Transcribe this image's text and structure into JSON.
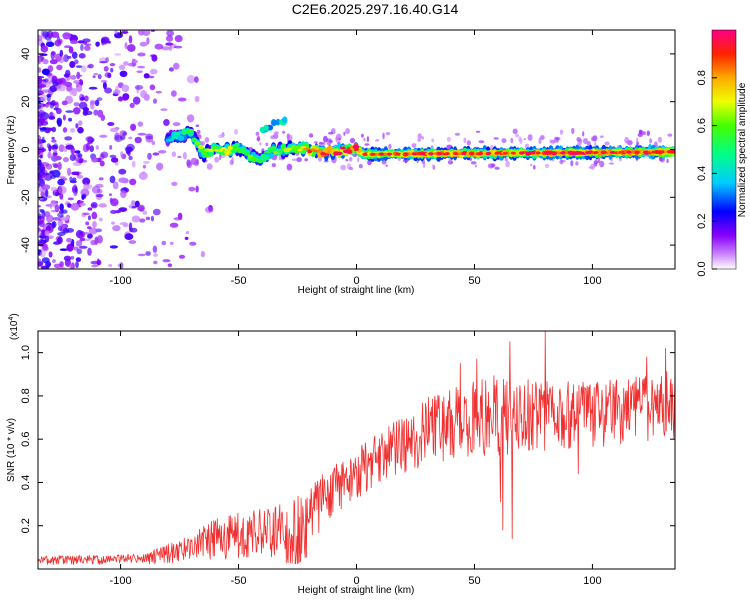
{
  "title": "C2E6.2025.297.16.40.G14",
  "chart_data": [
    {
      "type": "heatmap",
      "xlabel": "Height of straight line (km)",
      "ylabel": "Frequency (Hz)",
      "xlim": [
        -135,
        135
      ],
      "ylim": [
        -50,
        50
      ],
      "xticks": [
        -100,
        -50,
        0,
        50,
        100
      ],
      "yticks": [
        -40,
        -20,
        0,
        20,
        40
      ],
      "colorbar": {
        "label": "Normalized spectral amplitude",
        "range": [
          0,
          1
        ],
        "ticks": [
          0.0,
          0.2,
          0.4,
          0.6,
          0.8
        ],
        "tick_labels": [
          "0.0",
          "0.2",
          "0.4",
          "0.6",
          "0.8"
        ]
      },
      "ridge": [
        {
          "x": -78,
          "y": 5,
          "amp": 0.4
        },
        {
          "x": -70,
          "y": 7,
          "amp": 0.55
        },
        {
          "x": -65,
          "y": -2,
          "amp": 0.6
        },
        {
          "x": -60,
          "y": 0,
          "amp": 0.65
        },
        {
          "x": -55,
          "y": 0,
          "amp": 0.75
        },
        {
          "x": -50,
          "y": 1,
          "amp": 0.6
        },
        {
          "x": -45,
          "y": -3,
          "amp": 0.55
        },
        {
          "x": -40,
          "y": -4,
          "amp": 0.5
        },
        {
          "x": -38,
          "y": 8,
          "amp": 0.45
        },
        {
          "x": -33,
          "y": 12,
          "amp": 0.45
        },
        {
          "x": -35,
          "y": 0,
          "amp": 0.6
        },
        {
          "x": -30,
          "y": 0,
          "amp": 0.6
        },
        {
          "x": -25,
          "y": 1,
          "amp": 0.7
        },
        {
          "x": -20,
          "y": 0,
          "amp": 0.8
        },
        {
          "x": -15,
          "y": -1,
          "amp": 0.85
        },
        {
          "x": -10,
          "y": -1,
          "amp": 0.9
        },
        {
          "x": 0,
          "y": 0,
          "amp": 0.95
        },
        {
          "x": 3,
          "y": -2,
          "amp": 0.8
        },
        {
          "x": 135,
          "y": -1,
          "amp": 0.9
        }
      ]
    },
    {
      "type": "line",
      "xlabel": "Height of straight line (km)",
      "ylabel": "SNR (10 * v/v)",
      "scale_label": "(x10",
      "scale_exponent": "4",
      "scale_close": ")",
      "xlim": [
        -135,
        135
      ],
      "ylim": [
        0,
        1.1
      ],
      "xticks": [
        -100,
        -50,
        0,
        50,
        100
      ],
      "yticks": [
        0.2,
        0.4,
        0.6,
        0.8,
        1.0
      ],
      "color": "#f03030",
      "trend": [
        {
          "x": -135,
          "lo": 0.02,
          "hi": 0.06
        },
        {
          "x": -90,
          "lo": 0.02,
          "hi": 0.07
        },
        {
          "x": -75,
          "lo": 0.03,
          "hi": 0.14
        },
        {
          "x": -60,
          "lo": 0.04,
          "hi": 0.23
        },
        {
          "x": -50,
          "lo": 0.05,
          "hi": 0.26
        },
        {
          "x": -30,
          "lo": 0.05,
          "hi": 0.31
        },
        {
          "x": -25,
          "lo": 0.04,
          "hi": 0.34
        },
        {
          "x": -10,
          "lo": 0.25,
          "hi": 0.48
        },
        {
          "x": 0,
          "lo": 0.32,
          "hi": 0.56
        },
        {
          "x": 10,
          "lo": 0.4,
          "hi": 0.64
        },
        {
          "x": 30,
          "lo": 0.48,
          "hi": 0.8
        },
        {
          "x": 60,
          "lo": 0.52,
          "hi": 0.9
        },
        {
          "x": 100,
          "lo": 0.56,
          "hi": 0.86
        },
        {
          "x": 135,
          "lo": 0.6,
          "hi": 0.92
        }
      ],
      "peaks": [
        {
          "x": 35,
          "y": 0.8
        },
        {
          "x": 44,
          "y": 0.95
        },
        {
          "x": 51,
          "y": 0.97
        },
        {
          "x": 65,
          "y": 1.05
        },
        {
          "x": 80,
          "y": 1.1
        },
        {
          "x": 123,
          "y": 0.98
        },
        {
          "x": 131,
          "y": 1.02
        }
      ],
      "dips": [
        {
          "x": 61,
          "y": 0.31
        },
        {
          "x": 62,
          "y": 0.18
        },
        {
          "x": 66,
          "y": 0.14
        },
        {
          "x": 94,
          "y": 0.44
        }
      ]
    }
  ]
}
